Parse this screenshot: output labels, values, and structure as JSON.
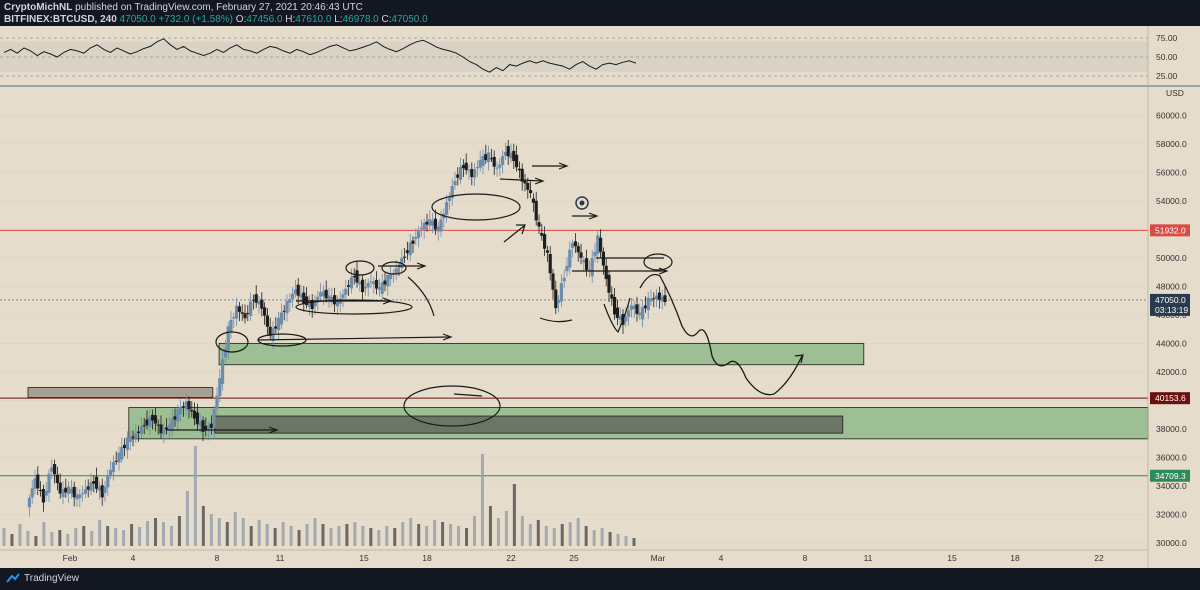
{
  "header": {
    "publisher": "CryptoMichNL",
    "published_text": "published on TradingView.com, February 27, 2021 20:46:43 UTC",
    "symbol": "BITFINEX:BTCUSD, 240",
    "last": "47050.0",
    "change": "+732.0 (+1.58%)",
    "o_label": "O:",
    "o": "47456.0",
    "h_label": "H:",
    "h": "47610.0",
    "l_label": "L:",
    "l": "46978.0",
    "c_label": "C:",
    "c": "47050.0"
  },
  "footer": {
    "brand": "TradingView"
  },
  "colors": {
    "background": "#e6dccb",
    "rsi_panel": "#d9d3c6",
    "up_candle": "#6b8cad",
    "down_candle": "#1e1e1e",
    "green_zone": "#90b98a",
    "red_line": "#d94b45",
    "dark_red_line": "#6b0f0f",
    "green_line": "#2e8a5a",
    "current_price_label": "#2a3a4e"
  },
  "chart_data": {
    "type": "candlestick",
    "currency_label": "USD",
    "ylim": [
      29500,
      61500
    ],
    "y_ticks": [
      30000,
      32000,
      34000,
      36000,
      38000,
      40000,
      42000,
      44000,
      46000,
      48000,
      50000,
      52000,
      54000,
      56000,
      58000,
      60000
    ],
    "y_tick_labels": [
      "30000.0",
      "32000.0",
      "34000.0",
      "36000.0",
      "38000.0",
      "40000.0",
      "42000.0",
      "44000.0",
      "46000.0",
      "48000.0",
      "50000.0",
      "52000.0",
      "54000.0",
      "56000.0",
      "58000.0",
      "60000.0"
    ],
    "x_range_days": [
      -1,
      24
    ],
    "x_ticks": [
      {
        "day": 1,
        "label": "Feb"
      },
      {
        "day": 4,
        "label": "4"
      },
      {
        "day": 8,
        "label": "8"
      },
      {
        "day": 11,
        "label": "11"
      },
      {
        "day": 15,
        "label": "15"
      },
      {
        "day": 18,
        "label": "18"
      },
      {
        "day": 22,
        "label": "22"
      },
      {
        "day": 25,
        "label": "25"
      },
      {
        "day": 29,
        "label": "Mar"
      },
      {
        "day": 32,
        "label": "4"
      },
      {
        "day": 36,
        "label": "8"
      },
      {
        "day": 39,
        "label": "11"
      },
      {
        "day": 43,
        "label": "15"
      },
      {
        "day": 46,
        "label": "18"
      },
      {
        "day": 50,
        "label": "22"
      }
    ],
    "price_levels": [
      {
        "value": 51932.0,
        "label": "51932.0",
        "color": "#d94b45"
      },
      {
        "value": 40153.6,
        "label": "40153.6",
        "color": "#6b0f0f"
      },
      {
        "value": 34709.3,
        "label": "34709.3",
        "color": "#2e8a5a"
      }
    ],
    "current_price": {
      "value": 47050.0,
      "label": "47050.0",
      "countdown": "03:13:19"
    },
    "rsi": {
      "levels": [
        75,
        50,
        25
      ],
      "labels": [
        "75.00",
        "50.00",
        "25.00"
      ],
      "band": [
        30,
        70
      ],
      "values": [
        56,
        60,
        55,
        62,
        58,
        52,
        57,
        54,
        50,
        56,
        60,
        58,
        55,
        62,
        66,
        60,
        56,
        62,
        58,
        54,
        57,
        61,
        64,
        70,
        74,
        66,
        60,
        64,
        58,
        55,
        52,
        55,
        60,
        56,
        62,
        66,
        60,
        58,
        55,
        60,
        64,
        62,
        58,
        55,
        60,
        57,
        53,
        56,
        60,
        64,
        66,
        62,
        58,
        60,
        63,
        66,
        70,
        64,
        60,
        57,
        61,
        66,
        70,
        72,
        68,
        63,
        60,
        58,
        55,
        50,
        44,
        40,
        34,
        30,
        36,
        32,
        40,
        38,
        42,
        45,
        42,
        45,
        42,
        40,
        38,
        34,
        40,
        44,
        38,
        34,
        40,
        42,
        40,
        43,
        45,
        42
      ]
    },
    "candle_points": [
      [
        -1,
        32500
      ],
      [
        -0.6,
        34500
      ],
      [
        -0.2,
        33000
      ],
      [
        0.2,
        35500
      ],
      [
        0.6,
        33500
      ],
      [
        1,
        33800
      ],
      [
        1.4,
        33200
      ],
      [
        1.8,
        33700
      ],
      [
        2.2,
        34300
      ],
      [
        2.6,
        33400
      ],
      [
        3,
        35200
      ],
      [
        3.4,
        36200
      ],
      [
        3.8,
        37200
      ],
      [
        4.2,
        37600
      ],
      [
        4.6,
        38300
      ],
      [
        5,
        38800
      ],
      [
        5.4,
        37800
      ],
      [
        5.8,
        38200
      ],
      [
        6.2,
        39200
      ],
      [
        6.6,
        39800
      ],
      [
        7,
        38800
      ],
      [
        7.4,
        38000
      ],
      [
        7.8,
        38200
      ],
      [
        8.2,
        41500
      ],
      [
        8.6,
        45000
      ],
      [
        9,
        46500
      ],
      [
        9.4,
        45800
      ],
      [
        9.8,
        47200
      ],
      [
        10.2,
        46600
      ],
      [
        10.6,
        44500
      ],
      [
        11,
        45600
      ],
      [
        11.4,
        46800
      ],
      [
        11.8,
        47800
      ],
      [
        12.2,
        47000
      ],
      [
        12.6,
        46600
      ],
      [
        13,
        47600
      ],
      [
        13.4,
        47200
      ],
      [
        13.8,
        46800
      ],
      [
        14.2,
        47800
      ],
      [
        14.6,
        48800
      ],
      [
        15,
        47800
      ],
      [
        15.4,
        48400
      ],
      [
        15.8,
        47800
      ],
      [
        16.2,
        48600
      ],
      [
        16.6,
        49200
      ],
      [
        17,
        50200
      ],
      [
        17.4,
        51200
      ],
      [
        17.8,
        52200
      ],
      [
        18.2,
        52600
      ],
      [
        18.6,
        52000
      ],
      [
        19,
        53800
      ],
      [
        19.4,
        55500
      ],
      [
        19.8,
        56500
      ],
      [
        20.2,
        55800
      ],
      [
        20.6,
        56800
      ],
      [
        21,
        57200
      ],
      [
        21.4,
        56200
      ],
      [
        21.8,
        57500
      ],
      [
        22.2,
        57000
      ],
      [
        22.6,
        55500
      ],
      [
        23,
        54500
      ],
      [
        23.4,
        52000
      ],
      [
        23.8,
        50200
      ],
      [
        24.2,
        46500
      ],
      [
        24.6,
        48800
      ],
      [
        25,
        51200
      ],
      [
        25.4,
        50000
      ],
      [
        25.8,
        49000
      ],
      [
        26.2,
        51400
      ],
      [
        26.6,
        48500
      ],
      [
        27,
        46200
      ],
      [
        27.4,
        45500
      ],
      [
        27.8,
        46700
      ],
      [
        28.2,
        46000
      ],
      [
        28.6,
        47000
      ],
      [
        29,
        47300
      ],
      [
        29.4,
        47050
      ]
    ],
    "volume": [
      18,
      12,
      22,
      15,
      10,
      24,
      14,
      16,
      12,
      18,
      20,
      15,
      26,
      20,
      18,
      16,
      22,
      19,
      25,
      28,
      24,
      20,
      30,
      55,
      100,
      40,
      32,
      28,
      24,
      34,
      28,
      20,
      26,
      22,
      18,
      24,
      20,
      16,
      22,
      28,
      22,
      18,
      20,
      22,
      24,
      20,
      18,
      16,
      20,
      18,
      24,
      28,
      22,
      20,
      26,
      24,
      22,
      20,
      18,
      30,
      92,
      40,
      28,
      35,
      62,
      30,
      22,
      26,
      20,
      18,
      22,
      24,
      28,
      20,
      16,
      18,
      14,
      12,
      10,
      8
    ],
    "zones": [
      {
        "from_day": 8.1,
        "to_day": 38.8,
        "low": 42500,
        "high": 44000,
        "color": "#90b98a"
      },
      {
        "from_day": 3.8,
        "to_day": 55,
        "low": 37300,
        "high": 39500,
        "color": "#90b98a"
      },
      {
        "from_day": 7.9,
        "to_day": 37.8,
        "low": 37700,
        "high": 38900,
        "color": "#5f6b5c"
      },
      {
        "from_day": -1,
        "to_day": 7.8,
        "low": 40200,
        "high": 40900,
        "color": "#9a9488"
      }
    ]
  }
}
